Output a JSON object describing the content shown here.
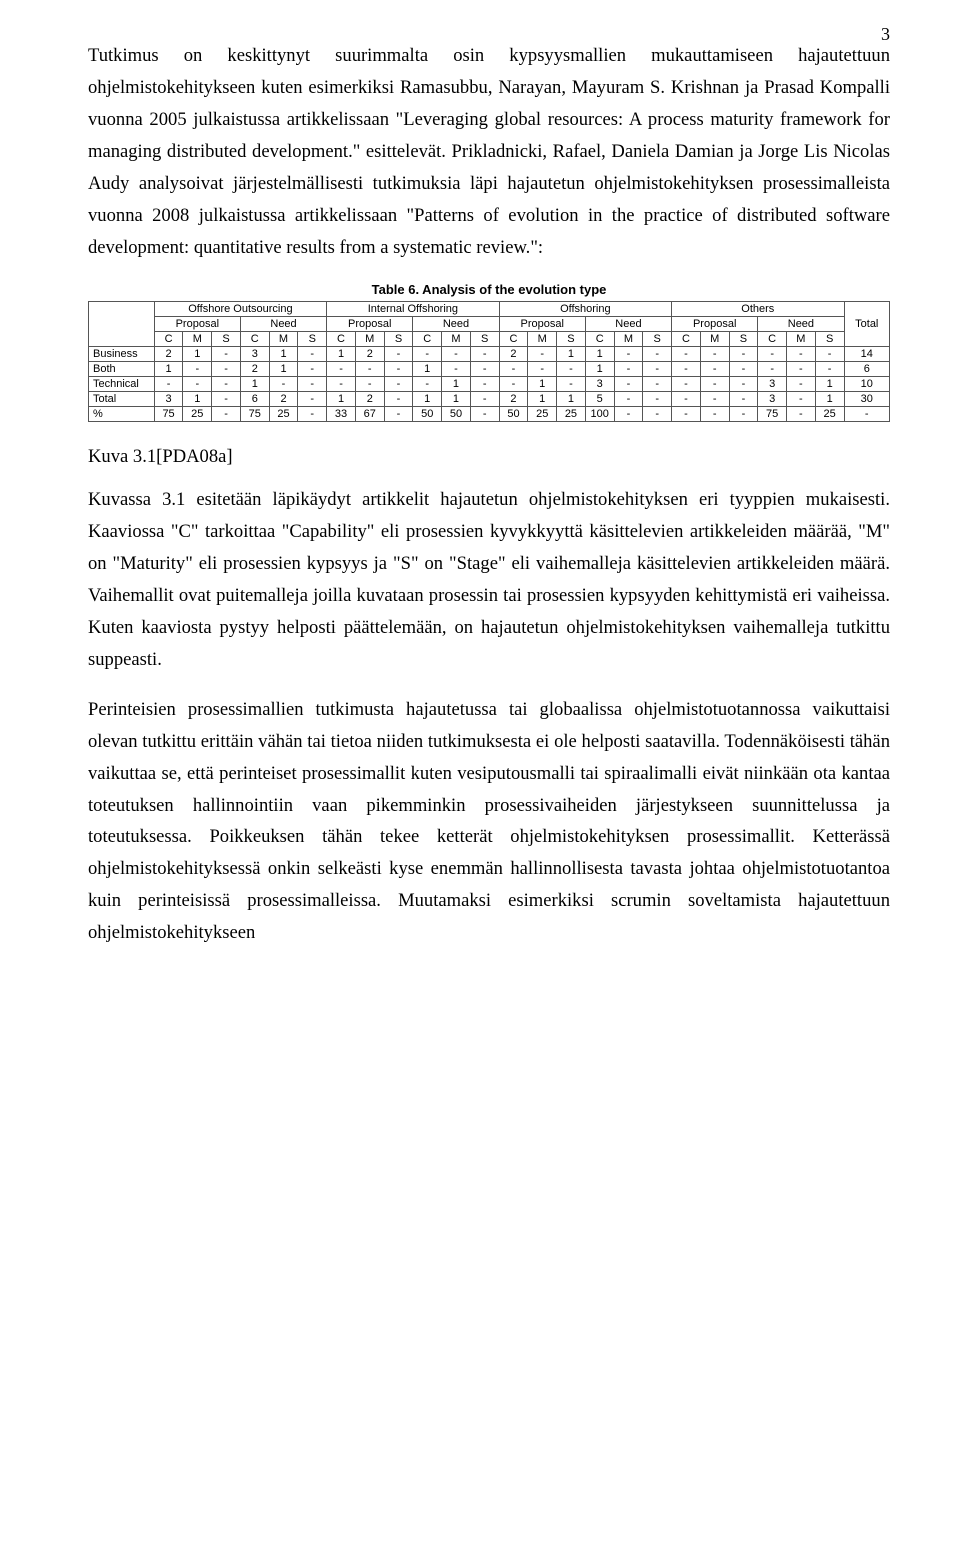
{
  "page_number": "3",
  "para1": "Tutkimus on keskittynyt suurimmalta osin kypsyysmallien mukauttamiseen hajautettuun ohjelmistokehitykseen kuten esimerkiksi Ramasubbu, Narayan, Mayuram S. Krishnan ja Prasad Kompalli vuonna 2005 julkaistussa artikkelissaan \"Leveraging global resources: A process maturity framework for managing distributed development.\" esittelevät. Prikladnicki, Rafael, Daniela Damian ja Jorge Lis Nicolas Audy analysoivat järjestelmällisesti tutkimuksia läpi hajautetun ohjelmistokehityksen prosessimalleista vuonna 2008 julkaistussa artikkelissaan \"Patterns of evolution in the practice of distributed software development: quantitative results from a systematic review.\":",
  "table": {
    "title": "Table 6. Analysis of the evolution type",
    "top_headers": [
      "Offshore Outsourcing",
      "Internal Offshoring",
      "Offshoring",
      "Others"
    ],
    "total_label": "Total",
    "sub_headers": [
      "Proposal",
      "Need",
      "Proposal",
      "Need",
      "Proposal",
      "Need",
      "Proposal",
      "Need"
    ],
    "cms": [
      "C",
      "M",
      "S",
      "C",
      "M",
      "S",
      "C",
      "M",
      "S",
      "C",
      "M",
      "S",
      "C",
      "M",
      "S",
      "C",
      "M",
      "S",
      "C",
      "M",
      "S",
      "C",
      "M",
      "S"
    ],
    "rows": [
      {
        "label": "Business",
        "cells": [
          "2",
          "1",
          "-",
          "3",
          "1",
          "-",
          "1",
          "2",
          "-",
          "-",
          "-",
          "-",
          "2",
          "-",
          "1",
          "1",
          "-",
          "-",
          "-",
          "-",
          "-",
          "-",
          "-",
          "-"
        ],
        "total": "14"
      },
      {
        "label": "Both",
        "cells": [
          "1",
          "-",
          "-",
          "2",
          "1",
          "-",
          "-",
          "-",
          "-",
          "1",
          "-",
          "-",
          "-",
          "-",
          "-",
          "1",
          "-",
          "-",
          "-",
          "-",
          "-",
          "-",
          "-",
          "-"
        ],
        "total": "6"
      },
      {
        "label": "Technical",
        "cells": [
          "-",
          "-",
          "-",
          "1",
          "-",
          "-",
          "-",
          "-",
          "-",
          "-",
          "1",
          "-",
          "-",
          "1",
          "-",
          "3",
          "-",
          "-",
          "-",
          "-",
          "-",
          "3",
          "-",
          "1"
        ],
        "total": "10"
      },
      {
        "label": "Total",
        "cells": [
          "3",
          "1",
          "-",
          "6",
          "2",
          "-",
          "1",
          "2",
          "-",
          "1",
          "1",
          "-",
          "2",
          "1",
          "1",
          "5",
          "-",
          "-",
          "-",
          "-",
          "-",
          "3",
          "-",
          "1"
        ],
        "total": "30"
      },
      {
        "label": "%",
        "cells": [
          "75",
          "25",
          "-",
          "75",
          "25",
          "-",
          "33",
          "67",
          "-",
          "50",
          "50",
          "-",
          "50",
          "25",
          "25",
          "100",
          "-",
          "-",
          "-",
          "-",
          "-",
          "75",
          "-",
          "25"
        ],
        "total": "-"
      }
    ]
  },
  "caption": "Kuva 3.1[PDA08a]",
  "para2": "Kuvassa 3.1 esitetään läpikäydyt artikkelit hajautetun ohjelmistokehityksen eri tyyppien mukaisesti. Kaaviossa \"C\" tarkoittaa \"Capability\" eli prosessien kyvykkyyttä käsittelevien artikkeleiden määrää, \"M\" on \"Maturity\" eli prosessien kypsyys ja \"S\" on \"Stage\" eli vaihemalleja käsittelevien artikkeleiden määrä. Vaihemallit ovat puitemalleja joilla kuvataan prosessin tai prosessien kypsyyden kehittymistä eri vaiheissa. Kuten kaaviosta pystyy helposti päättelemään, on hajautetun ohjelmistokehityksen vaihemalleja tutkittu suppeasti.",
  "para3": "Perinteisien prosessimallien tutkimusta hajautetussa tai globaalissa ohjelmistotuotannossa vaikuttaisi olevan tutkittu erittäin vähän tai tietoa niiden tutkimuksesta ei ole helposti saatavilla. Todennäköisesti tähän vaikuttaa se, että perinteiset prosessimallit kuten vesiputousmalli tai spiraalimalli eivät niinkään ota kantaa toteutuksen hallinnointiin vaan pikemminkin prosessivaiheiden järjestykseen suunnittelussa ja toteutuksessa. Poikkeuksen tähän tekee ketterät ohjelmistokehityksen prosessimallit. Ketterässä ohjelmistokehityksessä onkin selkeästi kyse enemmän hallinnollisesta tavasta johtaa ohjelmistotuotantoa kuin perinteisissä prosessimalleissa. Muutamaksi esimerkiksi scrumin soveltamista hajautettuun ohjelmistokehitykseen"
}
